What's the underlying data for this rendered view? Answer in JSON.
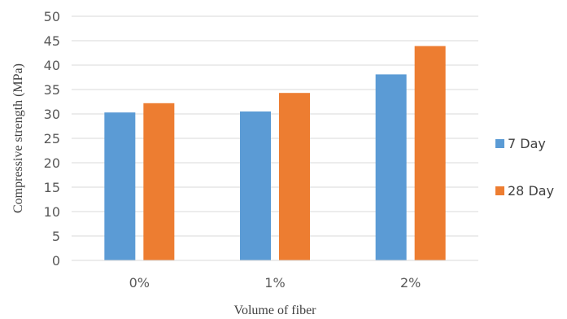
{
  "chart_data": {
    "type": "bar",
    "categories": [
      "0%",
      "1%",
      "2%"
    ],
    "series": [
      {
        "name": "7 Day",
        "values": [
          30.3,
          30.5,
          38.1
        ],
        "color": "#5b9bd5"
      },
      {
        "name": "28 Day",
        "values": [
          32.2,
          34.3,
          43.9
        ],
        "color": "#ed7d31"
      }
    ],
    "title": "",
    "xlabel": "Volume of fiber",
    "ylabel": "Compressive strength (MPa)",
    "ylim": [
      0,
      50
    ],
    "yticks": [
      "0",
      "5",
      "10",
      "15",
      "20",
      "25",
      "30",
      "35",
      "40",
      "45",
      "50"
    ],
    "grid": true,
    "legend_position": "right"
  }
}
